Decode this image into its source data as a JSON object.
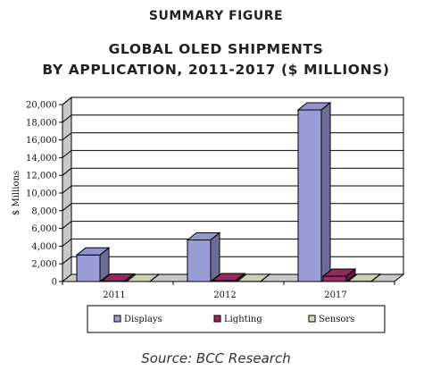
{
  "header": {
    "summary": "SUMMARY FIGURE",
    "title_line1": "GLOBAL OLED SHIPMENTS",
    "title_line2": "BY APPLICATION, 2011-2017  ($ MILLIONS)"
  },
  "footer": {
    "source": "Source: BCC Research"
  },
  "colors": {
    "Displays": "#9a9cd8",
    "Lighting": "#9a2a63",
    "Sensors": "#d9dcb8"
  },
  "chart_data": {
    "type": "bar",
    "title": "GLOBAL OLED SHIPMENTS BY APPLICATION, 2011-2017  ($ MILLIONS)",
    "ylabel": "$ Millions",
    "xlabel": "",
    "ylim": [
      0,
      20000
    ],
    "yticks": [
      "0",
      "2,000",
      "4,000",
      "6,000",
      "8,000",
      "10,000",
      "12,000",
      "14,000",
      "16,000",
      "18,000",
      "20,000"
    ],
    "categories": [
      "2011",
      "2012",
      "2017"
    ],
    "series": [
      {
        "name": "Displays",
        "values": [
          3000,
          4700,
          19400
        ]
      },
      {
        "name": "Lighting",
        "values": [
          50,
          100,
          600
        ]
      },
      {
        "name": "Sensors",
        "values": [
          5,
          10,
          20
        ]
      }
    ],
    "grid": true,
    "legend_position": "bottom"
  }
}
